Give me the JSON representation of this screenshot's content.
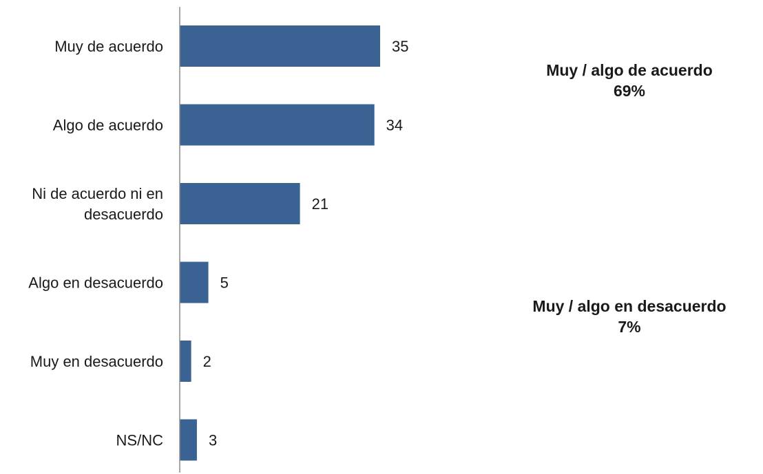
{
  "chart_data": {
    "type": "bar",
    "orientation": "horizontal",
    "categories": [
      [
        "Muy de acuerdo"
      ],
      [
        "Algo de acuerdo"
      ],
      [
        "Ni de acuerdo ni en",
        "desacuerdo"
      ],
      [
        "Algo en desacuerdo"
      ],
      [
        "Muy en desacuerdo"
      ],
      [
        "NS/NC"
      ]
    ],
    "values": [
      35,
      34,
      21,
      5,
      2,
      3
    ],
    "value_labels": [
      "35",
      "34",
      "21",
      "5",
      "2",
      "3"
    ],
    "xlim": [
      0,
      40
    ],
    "grid": false,
    "legend": "none",
    "bar_color": "#3A6394",
    "axis_color": "#8c8c8c",
    "annotations": [
      {
        "title": "Muy / algo de acuerdo",
        "value": "69%"
      },
      {
        "title": "Muy / algo en desacuerdo",
        "value": "7%"
      }
    ]
  }
}
